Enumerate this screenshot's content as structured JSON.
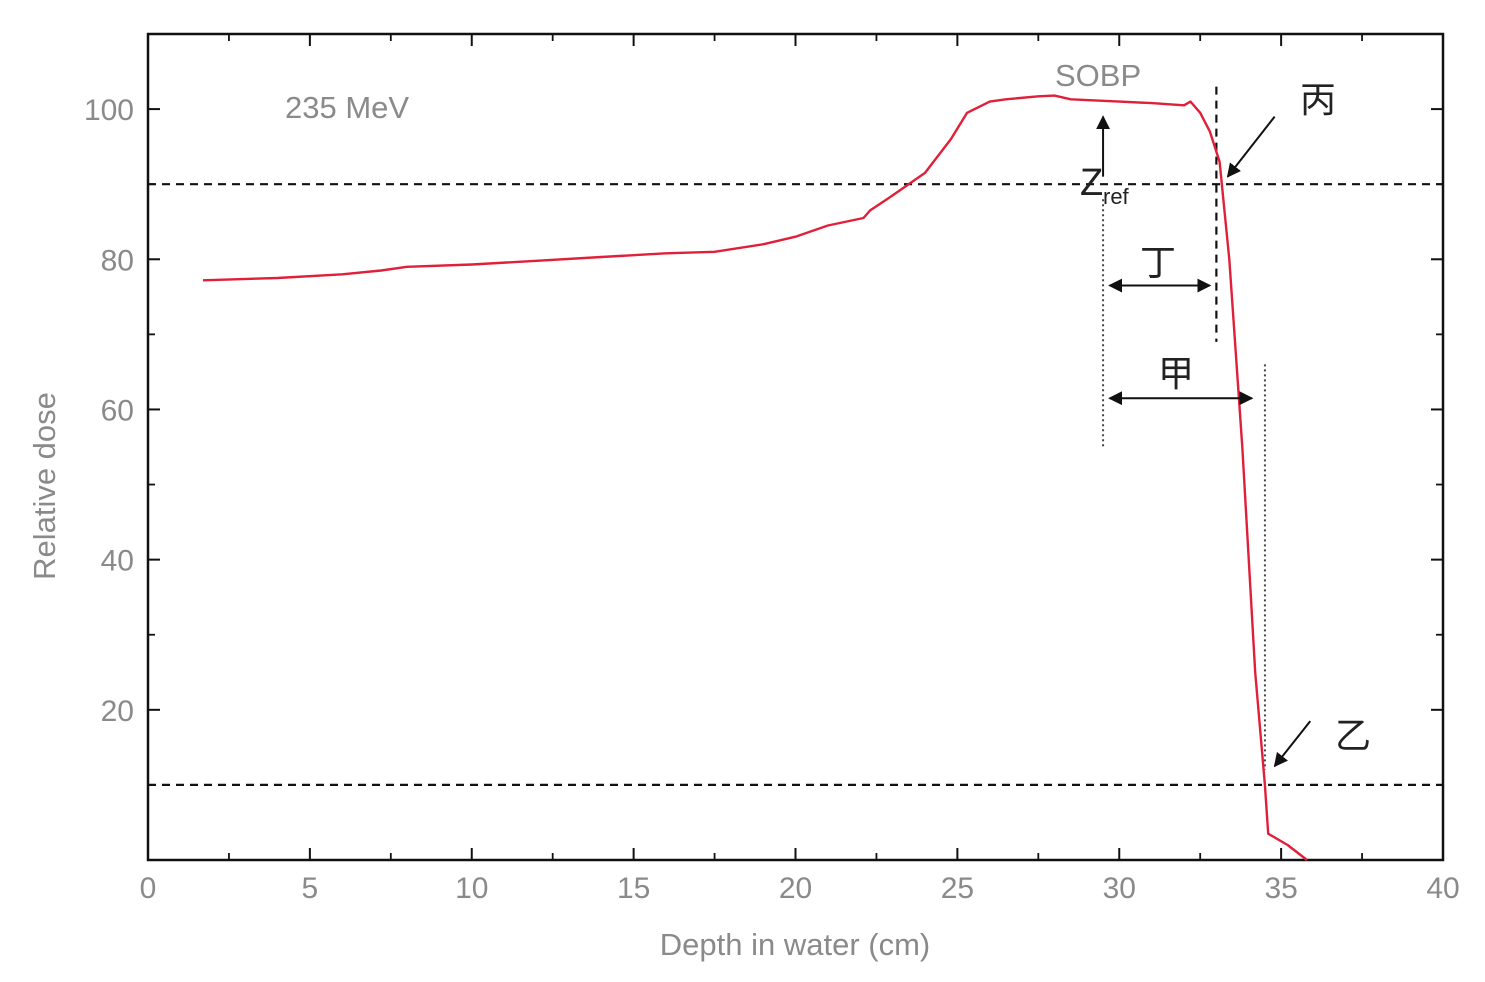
{
  "chart_data": {
    "type": "line",
    "xlabel": "Depth in water (cm)",
    "ylabel": "Relative dose",
    "xlim": [
      0,
      40
    ],
    "ylim": [
      0,
      110
    ],
    "xticks": [
      0,
      5,
      10,
      15,
      20,
      25,
      30,
      35,
      40
    ],
    "xtick_labels": [
      "0",
      "5",
      "10",
      "15",
      "20",
      "25",
      "30",
      "35",
      "40"
    ],
    "yticks": [
      20,
      40,
      60,
      80,
      100
    ],
    "ytick_labels": [
      "20",
      "40",
      "60",
      "80",
      "100"
    ],
    "grid": false,
    "series": [
      {
        "color": "#e0203a",
        "x": [
          1.7,
          4,
          6,
          7.2,
          8,
          10,
          12,
          14,
          16,
          17.5,
          19,
          20,
          21,
          22.1,
          22.3,
          23,
          24,
          24.8,
          25.3,
          26,
          26.5,
          27.5,
          28,
          28.5,
          30,
          31,
          32,
          32.2,
          32.5,
          32.8,
          33.1,
          33.4,
          33.8,
          34.2,
          34.5,
          34.6,
          35.2,
          35.8
        ],
        "y": [
          77.2,
          77.5,
          78,
          78.5,
          79,
          79.3,
          79.8,
          80.3,
          80.8,
          81,
          82,
          83,
          84.5,
          85.5,
          86.5,
          88.5,
          91.5,
          96,
          99.5,
          101,
          101.3,
          101.7,
          101.8,
          101.3,
          101,
          100.8,
          100.5,
          101,
          99.5,
          97,
          93,
          80,
          55,
          25,
          10,
          3.5,
          2,
          0
        ]
      }
    ],
    "hlines": [
      90,
      10
    ],
    "vlines_dashed": [
      33.0
    ],
    "vlines_dotted": [
      29.5,
      34.5
    ],
    "annotations": {
      "energy": "235 MeV",
      "sobp": "SOBP",
      "z_main": "Z",
      "z_sub": "ref",
      "label_bing": "丙",
      "label_ding": "丁",
      "label_jia": "甲",
      "label_yi": "乙"
    }
  }
}
